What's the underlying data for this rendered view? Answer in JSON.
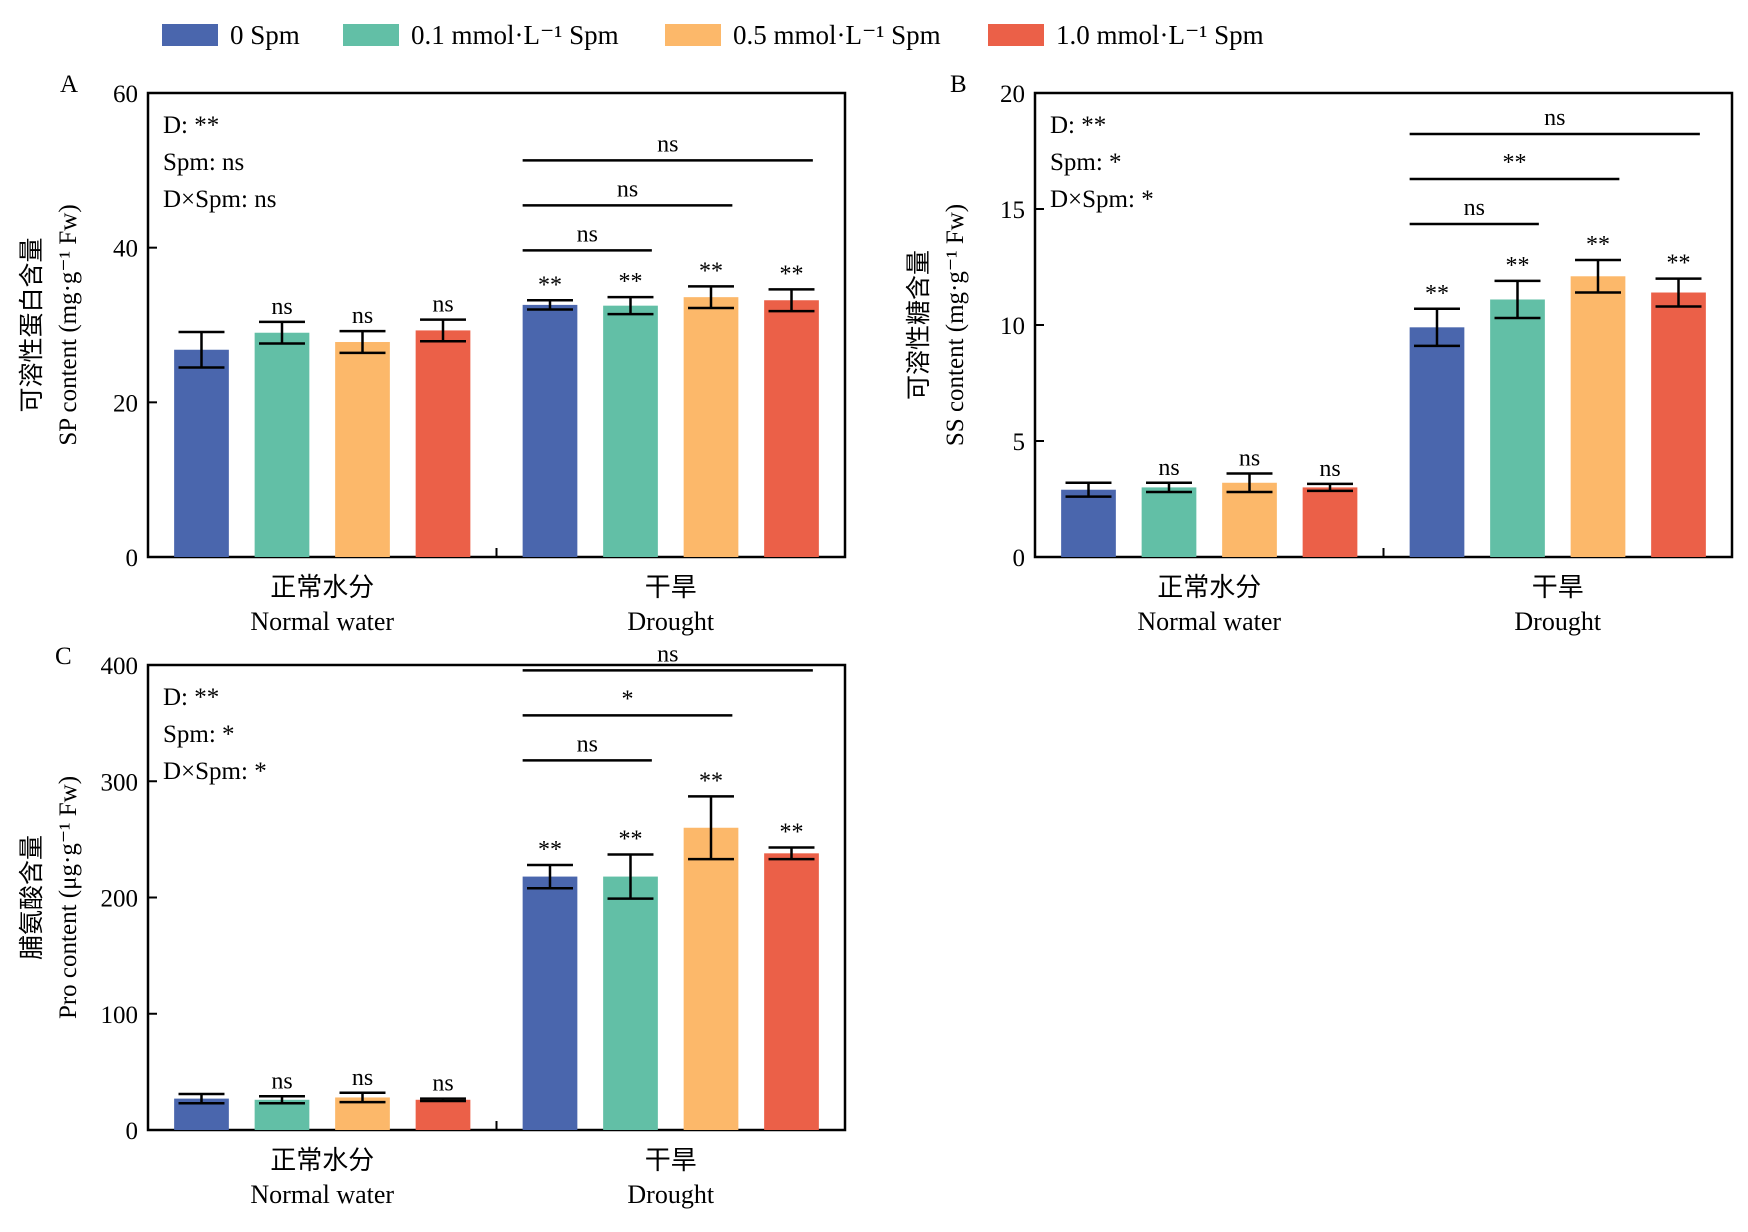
{
  "legend": {
    "items": [
      {
        "label": "0  Spm",
        "color": "#4a66ad"
      },
      {
        "label": "0.1 mmol·L⁻¹ Spm",
        "color": "#62bfa6"
      },
      {
        "label": "0.5 mmol·L⁻¹ Spm",
        "color": "#fcb86a"
      },
      {
        "label": "1.0 mmol·L⁻¹ Spm",
        "color": "#eb6048"
      }
    ]
  },
  "chart_data": [
    {
      "type": "bar",
      "panel": "A",
      "ylabel_cn": "可溶性蛋白含量",
      "ylabel_en": "SP content (mg·g⁻¹ Fw)",
      "ylim": [
        0,
        60
      ],
      "yticks": [
        "0",
        "20",
        "40",
        "60"
      ],
      "categories": [
        {
          "cn": "正常水分",
          "en": "Normal water"
        },
        {
          "cn": "干旱",
          "en": "Drought"
        }
      ],
      "series": [
        {
          "values": [
            26.8,
            32.6
          ],
          "errors": [
            2.3,
            0.6
          ],
          "sig": [
            "",
            "**"
          ]
        },
        {
          "values": [
            29.0,
            32.5
          ],
          "errors": [
            1.4,
            1.1
          ],
          "sig": [
            "ns",
            "**"
          ]
        },
        {
          "values": [
            27.8,
            33.6
          ],
          "errors": [
            1.4,
            1.4
          ],
          "sig": [
            "ns",
            "**"
          ]
        },
        {
          "values": [
            29.3,
            33.2
          ],
          "errors": [
            1.4,
            1.4
          ],
          "sig": [
            "ns",
            "**"
          ]
        }
      ],
      "anova": [
        "D: **",
        "Spm: ns",
        "D×Spm: ns"
      ],
      "brackets": [
        {
          "from": 0,
          "to": 1,
          "label": "ns"
        },
        {
          "from": 0,
          "to": 2,
          "label": "ns"
        },
        {
          "from": 0,
          "to": 3,
          "label": "ns"
        }
      ]
    },
    {
      "type": "bar",
      "panel": "B",
      "ylabel_cn": "可溶性糖含量",
      "ylabel_en": "SS content (mg·g⁻¹ Fw)",
      "ylim": [
        0,
        20
      ],
      "yticks": [
        "0",
        "5",
        "10",
        "15",
        "20"
      ],
      "categories": [
        {
          "cn": "正常水分",
          "en": "Normal water"
        },
        {
          "cn": "干旱",
          "en": "Drought"
        }
      ],
      "series": [
        {
          "values": [
            2.9,
            9.9
          ],
          "errors": [
            0.3,
            0.8
          ],
          "sig": [
            "",
            "**"
          ]
        },
        {
          "values": [
            3.0,
            11.1
          ],
          "errors": [
            0.2,
            0.8
          ],
          "sig": [
            "ns",
            "**"
          ]
        },
        {
          "values": [
            3.2,
            12.1
          ],
          "errors": [
            0.4,
            0.7
          ],
          "sig": [
            "ns",
            "**"
          ]
        },
        {
          "values": [
            3.0,
            11.4
          ],
          "errors": [
            0.15,
            0.6
          ],
          "sig": [
            "ns",
            "**"
          ]
        }
      ],
      "anova": [
        "D: **",
        "Spm: *",
        "D×Spm: *"
      ],
      "brackets": [
        {
          "from": 0,
          "to": 1,
          "label": "ns"
        },
        {
          "from": 0,
          "to": 2,
          "label": "**"
        },
        {
          "from": 0,
          "to": 3,
          "label": "ns"
        }
      ]
    },
    {
      "type": "bar",
      "panel": "C",
      "ylabel_cn": "脯氨酸含量",
      "ylabel_en": "Pro content (μg·g⁻¹ Fw)",
      "ylim": [
        0,
        400
      ],
      "yticks": [
        "0",
        "100",
        "200",
        "300",
        "400"
      ],
      "categories": [
        {
          "cn": "正常水分",
          "en": "Normal water"
        },
        {
          "cn": "干旱",
          "en": "Drought"
        }
      ],
      "series": [
        {
          "values": [
            27,
            218
          ],
          "errors": [
            4,
            10
          ],
          "sig": [
            "",
            "**"
          ]
        },
        {
          "values": [
            26,
            218
          ],
          "errors": [
            3,
            19
          ],
          "sig": [
            "ns",
            "**"
          ]
        },
        {
          "values": [
            28,
            260
          ],
          "errors": [
            4,
            27
          ],
          "sig": [
            "ns",
            "**"
          ]
        },
        {
          "values": [
            26,
            238
          ],
          "errors": [
            1,
            5
          ],
          "sig": [
            "ns",
            "**"
          ]
        }
      ],
      "anova": [
        "D: **",
        "Spm: *",
        "D×Spm: *"
      ],
      "brackets": [
        {
          "from": 0,
          "to": 1,
          "label": "ns"
        },
        {
          "from": 0,
          "to": 2,
          "label": "*"
        },
        {
          "from": 0,
          "to": 3,
          "label": "ns"
        }
      ]
    }
  ]
}
